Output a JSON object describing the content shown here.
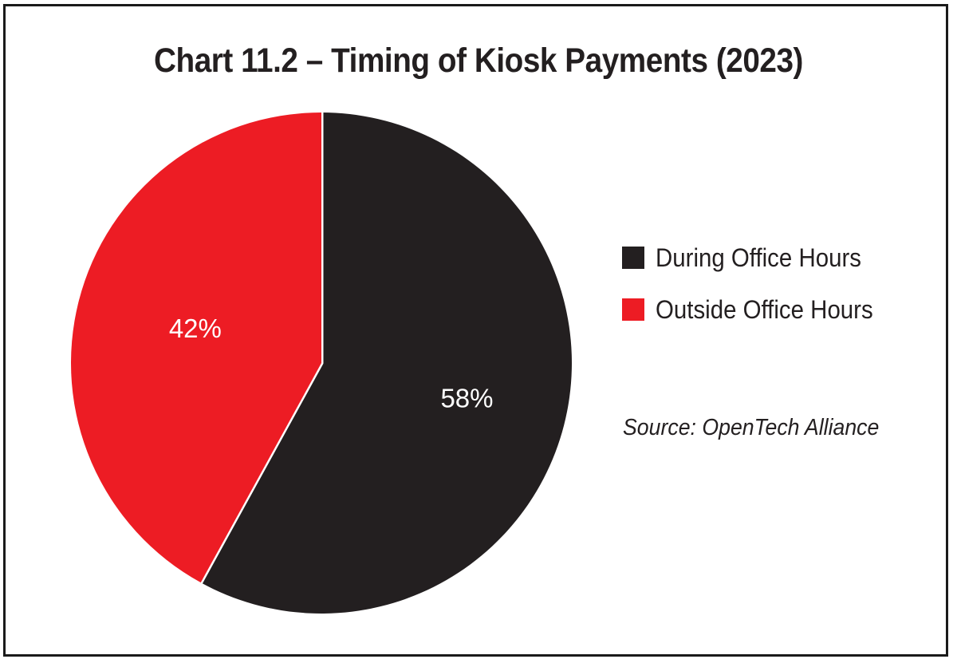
{
  "chart_data": {
    "type": "pie",
    "title": "Chart 11.2 – Timing of Kiosk Payments (2023)",
    "slices": [
      {
        "label": "During Office Hours",
        "value": 58,
        "display": "58%",
        "color": "#231f20"
      },
      {
        "label": "Outside Office Hours",
        "value": 42,
        "display": "42%",
        "color": "#ed1c24"
      }
    ],
    "legend_placement": "right",
    "source": "Source: OpenTech Alliance"
  },
  "colors": {
    "slice_separator": "#ffffff",
    "text_dark": "#231f20",
    "label_on_slice": "#ffffff"
  }
}
